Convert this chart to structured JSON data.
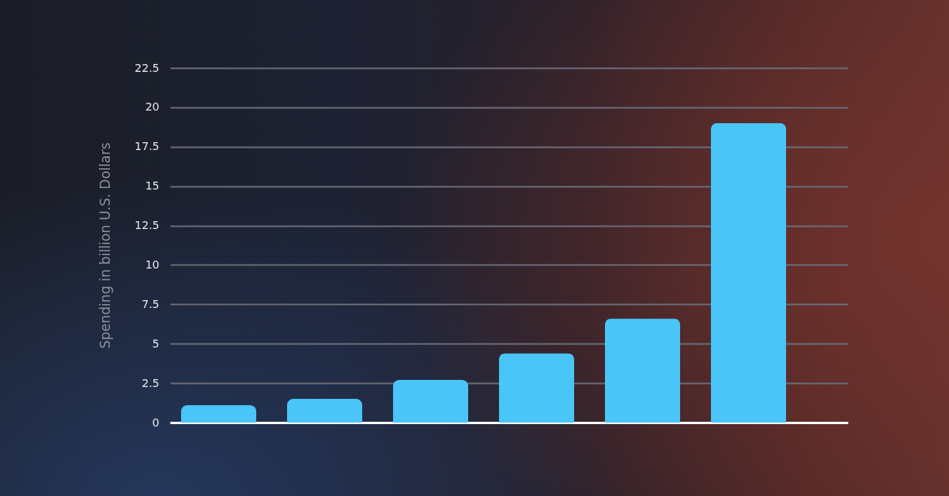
{
  "chart_data": {
    "type": "bar",
    "ylabel": "Spending in billion U.S. Dollars",
    "categories": [
      null,
      null,
      null,
      null,
      null,
      null
    ],
    "values": [
      1.1,
      1.5,
      2.7,
      4.4,
      6.6,
      19.0
    ],
    "color": "#49c5f7",
    "ylim": [
      0,
      22.5
    ],
    "yticks": [
      0,
      2.5,
      5,
      7.5,
      10,
      12.5,
      15,
      17.5,
      20,
      22.5
    ],
    "grid": "y",
    "tick_labels": "y"
  }
}
